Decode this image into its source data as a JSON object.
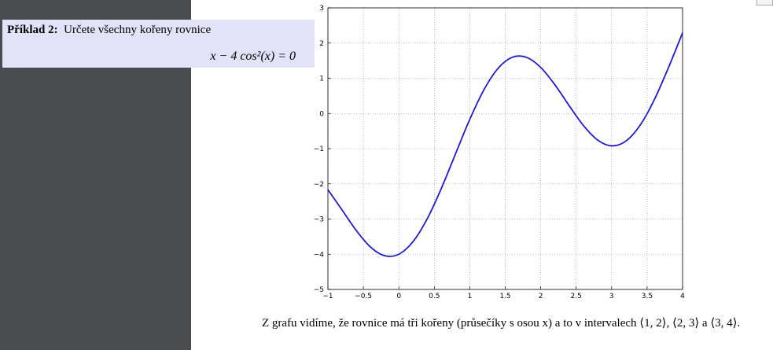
{
  "example": {
    "label": "Příklad 2:",
    "text": "Určete všechny kořeny rovnice",
    "equation": "x − 4 cos²(x) = 0"
  },
  "chart_data": {
    "type": "line",
    "x": [
      -1,
      -0.8,
      -0.6,
      -0.4,
      -0.2,
      0,
      0.2,
      0.4,
      0.6,
      0.8,
      1,
      1.2,
      1.4,
      1.6,
      1.8,
      2,
      2.2,
      2.4,
      2.6,
      2.8,
      3,
      3.2,
      3.4,
      3.6,
      3.8,
      4
    ],
    "values": [
      -2.168,
      -2.742,
      -3.325,
      -3.794,
      -4.042,
      -4,
      -3.642,
      -2.994,
      -2.125,
      -1.142,
      -0.168,
      0.675,
      1.284,
      1.597,
      1.593,
      1.307,
      0.815,
      0.225,
      -0.337,
      -0.751,
      -0.92,
      -0.786,
      -0.339,
      0.383,
      1.297,
      2.291
    ],
    "color": "#1c1cd0",
    "xlim": [
      -1,
      4
    ],
    "ylim": [
      -5,
      3
    ],
    "xticks": [
      {
        "value": -1,
        "label": "−1"
      },
      {
        "value": -0.5,
        "label": "−0.5"
      },
      0,
      0.5,
      1,
      1.5,
      2,
      2.5,
      3,
      3.5,
      4
    ],
    "yticks": [
      {
        "value": -5,
        "label": "−5"
      },
      {
        "value": -4,
        "label": "−4"
      },
      {
        "value": -3,
        "label": "−3"
      },
      {
        "value": -2,
        "label": "−2"
      },
      {
        "value": -1,
        "label": "−1"
      },
      0,
      1,
      2,
      3
    ],
    "grid": true
  },
  "conclusion": "Z grafu vidíme, že rovnice má tři kořeny (průsečíky s osou x) a to v intervalech ⟨1, 2⟩, ⟨2, 3⟩ a ⟨3, 4⟩."
}
